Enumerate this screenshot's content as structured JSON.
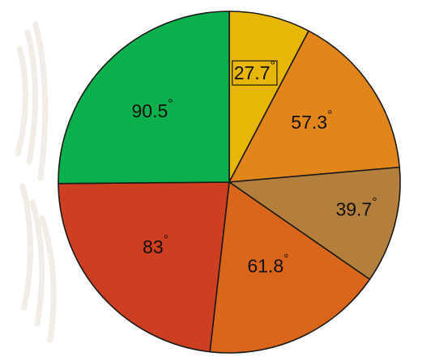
{
  "chart_data": {
    "type": "pie",
    "unit": "°",
    "slices": [
      {
        "label": "27.7",
        "value": 27.7,
        "color": "#e8b705"
      },
      {
        "label": "57.3",
        "value": 57.3,
        "color": "#e2861c"
      },
      {
        "label": "39.7",
        "value": 39.7,
        "color": "#b47e3c"
      },
      {
        "label": "61.8",
        "value": 61.8,
        "color": "#d9661a"
      },
      {
        "label": "83",
        "value": 83,
        "color": "#ce3e21"
      },
      {
        "label": "90.5",
        "value": 90.5,
        "color": "#0bb04c"
      }
    ],
    "start_angle": "top",
    "direction": "clockwise"
  },
  "colors": {
    "background": "#ffffff",
    "watermark": "#f2ece6",
    "outline": "#1a1a1a"
  }
}
